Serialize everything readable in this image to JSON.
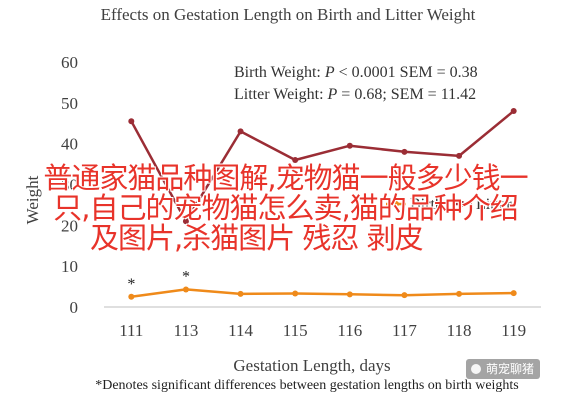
{
  "chart_data": {
    "type": "line",
    "title": "Effects on Gestation Length on Birth and Litter Weight",
    "xlabel": "Gestation Length, days",
    "ylabel": "Weight",
    "categories": [
      "111",
      "113",
      "114",
      "115",
      "116",
      "117",
      "118",
      "119"
    ],
    "ylim": [
      0,
      60
    ],
    "yticks": [
      0,
      10,
      20,
      30,
      40,
      50,
      60
    ],
    "series": [
      {
        "name": "Litter Weight",
        "color": "#9b2d35",
        "values": [
          45.5,
          21,
          43,
          36,
          39.5,
          38,
          37,
          48
        ]
      },
      {
        "name": "Birth Weight",
        "color": "#ef8a1a",
        "values": [
          2.5,
          4.3,
          3.2,
          3.3,
          3.1,
          2.9,
          3.2,
          3.4
        ]
      }
    ],
    "stats": [
      {
        "label": "Birth Weight:",
        "italic": "P",
        "rest": "< 0.0001 SEM = 0.38"
      },
      {
        "label": "Litter Weight:",
        "italic": "P",
        "rest": "= 0.68; SEM = 11.42"
      }
    ],
    "significance_marks": [
      {
        "category": "111",
        "mark": "*"
      },
      {
        "category": "113",
        "mark": "*"
      }
    ],
    "legend": {
      "position": "center-right",
      "items": [
        "Birth",
        "Litter"
      ]
    },
    "footnote": "*Denotes significant differences between gestation lengths on birth weights",
    "grid": false
  },
  "overlay": {
    "line1": "普通家猫品种图解,宠物猫一般多少钱一",
    "line2": "只,自己的宠物猫怎么卖,猫的品种介绍",
    "line3": "及图片,杀猫图片 残忍 剥皮",
    "color": "#e8332a"
  },
  "watermark": {
    "text": "萌宠聊猪"
  }
}
